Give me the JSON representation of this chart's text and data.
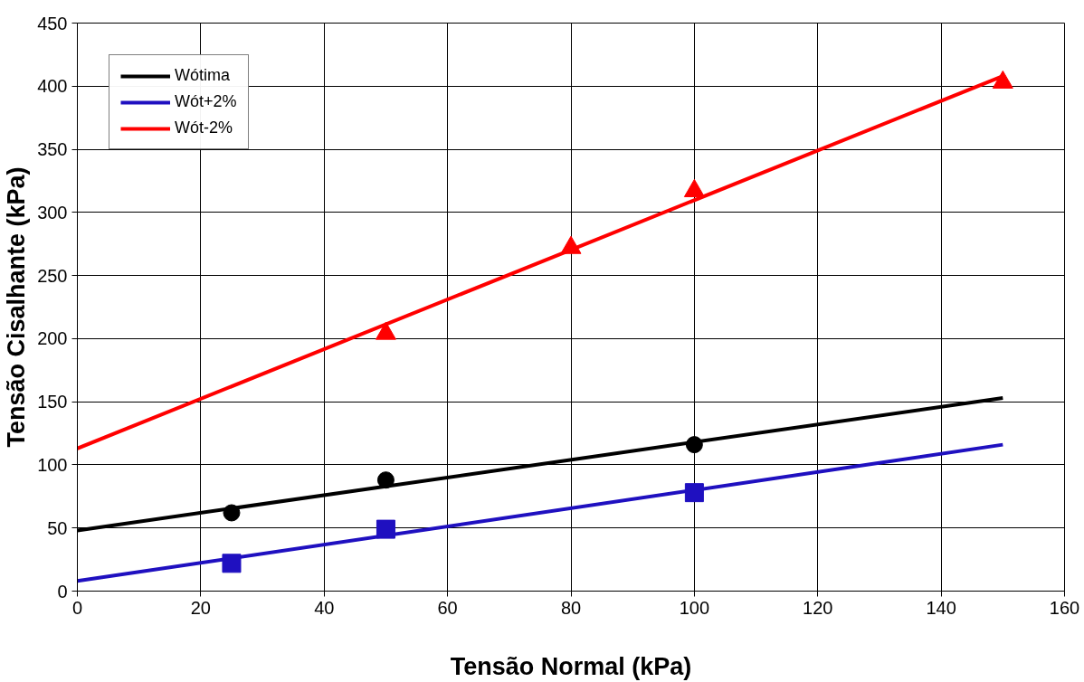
{
  "chart_data": {
    "type": "line",
    "xlabel": "Tensão Normal (kPa)",
    "ylabel": "Tensão Cisalhante (kPa)",
    "xlim": [
      0,
      160
    ],
    "ylim": [
      0,
      450
    ],
    "xticks": [
      0,
      20,
      40,
      60,
      80,
      100,
      120,
      140,
      160
    ],
    "yticks": [
      0,
      50,
      100,
      150,
      200,
      250,
      300,
      350,
      400,
      450
    ],
    "grid": true,
    "legend": "top left",
    "series": [
      {
        "name": "Wótima",
        "color": "#000000",
        "marker": "none",
        "x": [
          0,
          150
        ],
        "values": [
          48,
          153
        ]
      },
      {
        "name": "Wót+2%",
        "color": "#1f10c0",
        "marker": "none",
        "x": [
          0,
          150
        ],
        "values": [
          8,
          116
        ]
      },
      {
        "name": "Wót-2%",
        "color": "#ff0000",
        "marker": "none",
        "x": [
          0,
          150
        ],
        "values": [
          113,
          408
        ]
      },
      {
        "type": "scatter",
        "color": "#000000",
        "marker": "circle",
        "x": [
          25,
          50,
          100
        ],
        "values": [
          62,
          88,
          116
        ]
      },
      {
        "type": "scatter",
        "color": "#1f10c0",
        "marker": "square",
        "x": [
          25,
          50,
          100
        ],
        "values": [
          22,
          49,
          78
        ]
      },
      {
        "type": "scatter",
        "color": "#ff0000",
        "marker": "triangle",
        "x": [
          50,
          80,
          100,
          150
        ],
        "values": [
          204,
          272,
          317,
          403
        ]
      }
    ]
  }
}
